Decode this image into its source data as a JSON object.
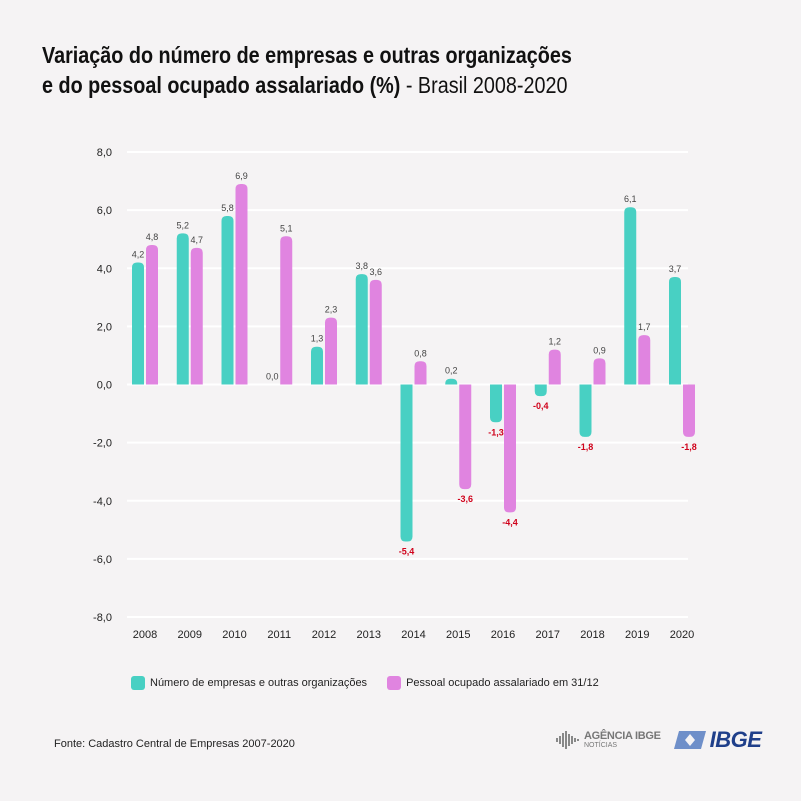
{
  "title": {
    "line1": "Variação do número de empresas e outras organizações",
    "line2_bold": "e do pessoal ocupado assalariado (%)",
    "line2_light": " - Brasil 2008-2020"
  },
  "colors": {
    "series1": "#48d0c3",
    "series2": "#e084e0",
    "grid": "#ffffff",
    "positive_label": "#444444",
    "negative_label": "#d0021b",
    "background": "#f5f3f4"
  },
  "chart_data": {
    "type": "bar",
    "title": "Variação do número de empresas e outras organizações e do pessoal ocupado assalariado (%) - Brasil 2008-2020",
    "categories": [
      "2008",
      "2009",
      "2010",
      "2011",
      "2012",
      "2013",
      "2014",
      "2015",
      "2016",
      "2017",
      "2018",
      "2019",
      "2020"
    ],
    "series": [
      {
        "name": "Número de empresas e outras organizações",
        "values": [
          4.2,
          5.2,
          5.8,
          0.0,
          1.3,
          3.8,
          -5.4,
          0.2,
          -1.3,
          -0.4,
          -1.8,
          6.1,
          3.7
        ]
      },
      {
        "name": "Pessoal ocupado assalariado em 31/12",
        "values": [
          4.8,
          4.7,
          6.9,
          5.1,
          2.3,
          3.6,
          0.8,
          -3.6,
          -4.4,
          1.2,
          0.9,
          1.7,
          -1.8
        ]
      }
    ],
    "ylim": [
      -8,
      8
    ],
    "yticks": [
      "8,0",
      "6,0",
      "4,0",
      "2,0",
      "0,0",
      "-2,0",
      "-4,0",
      "-6,0",
      "-8,0"
    ],
    "ytick_values": [
      8,
      6,
      4,
      2,
      0,
      -2,
      -4,
      -6,
      -8
    ],
    "xlabel": "",
    "ylabel": "",
    "grid": true,
    "legend_position": "bottom-left",
    "decimal_separator": ","
  },
  "legend": {
    "item1": "Número de empresas e outras organizações",
    "item2": "Pessoal ocupado assalariado em 31/12"
  },
  "footer": {
    "source": "Fonte: Cadastro Central de Empresas 2007-2020",
    "logo1_line1": "AGÊNCIA IBGE",
    "logo1_line2": "NOTÍCIAS",
    "logo2": "IBGE"
  }
}
